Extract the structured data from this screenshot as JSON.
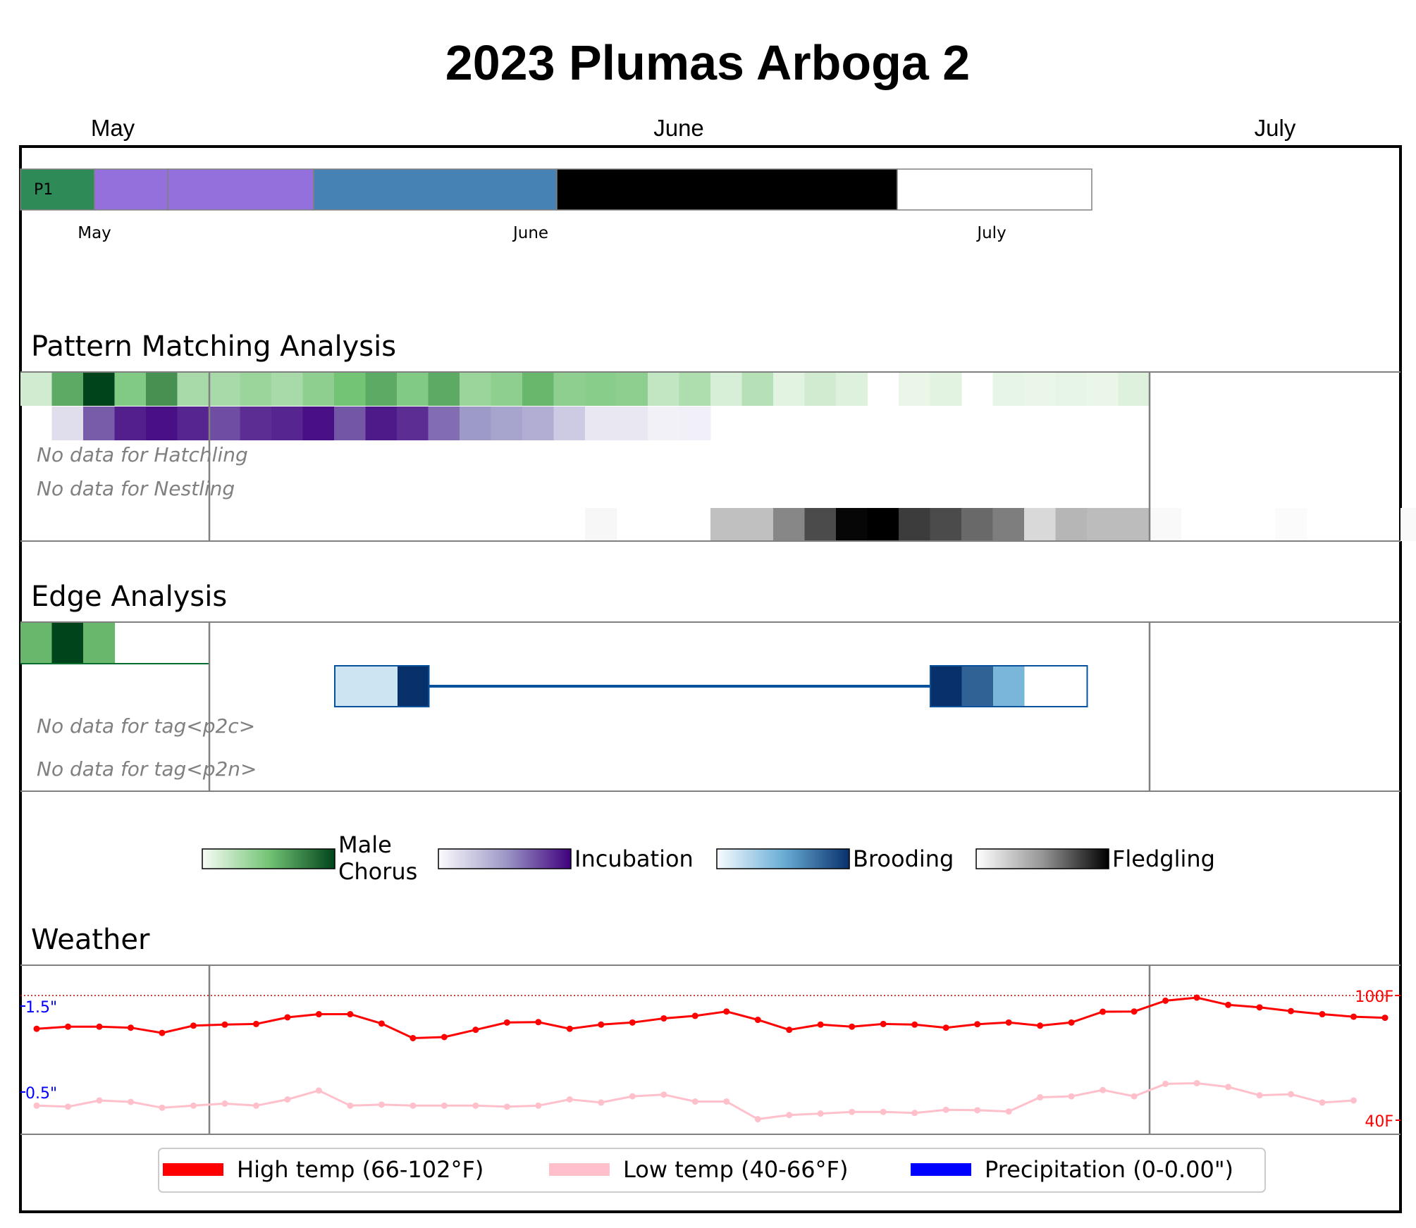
{
  "title": "2023 Plumas Arboga 2",
  "chart_data": {
    "type": "heatmap",
    "title": "2023 Plumas Arboga 2",
    "months_top": [
      "May",
      "June",
      "July"
    ],
    "timeline": {
      "label": "P1",
      "month_labels": [
        "May",
        "June",
        "July"
      ],
      "segments": [
        {
          "phase": "Male Chorus",
          "color": "#2e8b57"
        },
        {
          "phase": "Incubation",
          "color": "#9370db"
        },
        {
          "phase": "Incubation",
          "color": "#9370db"
        },
        {
          "phase": "Brooding",
          "color": "#4682b4"
        },
        {
          "phase": "Fledgling",
          "color": "#000000"
        },
        {
          "phase": "Unknown",
          "color": "#ffffff"
        }
      ]
    },
    "pattern_matching": {
      "section_title": "Pattern Matching Analysis",
      "male_chorus": [
        0.15,
        0.6,
        1.0,
        0.45,
        0.7,
        0.3,
        0.3,
        0.35,
        0.3,
        0.4,
        0.5,
        0.6,
        0.45,
        0.6,
        0.35,
        0.4,
        0.55,
        0.4,
        0.42,
        0.4,
        0.2,
        0.28,
        0.12,
        0.25,
        0.08,
        0.15,
        0.1,
        0.0,
        0.05,
        0.08,
        0.0,
        0.06,
        0.05,
        0.06,
        0.05,
        0.1
      ],
      "incubation": [
        0.0,
        0.15,
        0.7,
        0.9,
        0.95,
        0.88,
        0.75,
        0.85,
        0.88,
        0.95,
        0.72,
        0.92,
        0.85,
        0.65,
        0.5,
        0.45,
        0.4,
        0.25,
        0.1,
        0.1,
        0.05,
        0.06
      ],
      "no_data_notes": [
        "No data for Hatchling",
        "No data for Nestling"
      ],
      "fledgling": [
        0.0,
        0.0,
        0.0,
        0.0,
        0.0,
        0.0,
        0.0,
        0.0,
        0.0,
        0.0,
        0.0,
        0.0,
        0.0,
        0.0,
        0.0,
        0.0,
        0.0,
        0.0,
        0.04,
        0.0,
        0.0,
        0.0,
        0.3,
        0.3,
        0.55,
        0.75,
        0.98,
        1.0,
        0.8,
        0.75,
        0.65,
        0.58,
        0.18,
        0.35,
        0.32,
        0.32,
        0.03,
        0.0,
        0.0,
        0.0,
        0.02,
        0.0,
        0.0,
        0.0,
        0.03
      ]
    },
    "edge_analysis": {
      "section_title": "Edge Analysis",
      "male_chorus": [
        0.55,
        1.0,
        0.55,
        0.0,
        0.0,
        0.0
      ],
      "no_data_notes": [
        "No data for tag<p2c>",
        "No data for tag<p2n>"
      ],
      "incubation_box": [
        0.15,
        0.15,
        1.0
      ],
      "brooding_box": [
        1.0,
        0.8,
        0.45,
        0.0,
        0.0
      ]
    },
    "legend": [
      {
        "label": "Male\nChorus",
        "line1": "Male",
        "line2": "Chorus",
        "colormap": [
          "#f7fcf5",
          "#74c476",
          "#00441b"
        ]
      },
      {
        "label": "Incubation",
        "colormap": [
          "#fcfbfd",
          "#9e9ac8",
          "#3f007d"
        ]
      },
      {
        "label": "Brooding",
        "colormap": [
          "#f7fbff",
          "#6baed6",
          "#08306b"
        ]
      },
      {
        "label": "Fledgling",
        "colormap": [
          "#ffffff",
          "#969696",
          "#000000"
        ]
      }
    ],
    "weather": {
      "section_title": "Weather",
      "high_temp": [
        84,
        85,
        85,
        84.5,
        82,
        85.5,
        86,
        86.3,
        89.5,
        91,
        91,
        86.5,
        79.5,
        80,
        83.5,
        87,
        87.2,
        84,
        86,
        87,
        89,
        90.2,
        92.3,
        88.3,
        83.5,
        86,
        85,
        86.3,
        86,
        84.5,
        86.2,
        87,
        85.5,
        87,
        92.2,
        92.3,
        97.5,
        99,
        95.5,
        94.3,
        92.5,
        91,
        89.8,
        89.3
      ],
      "low_temp": [
        47,
        46.5,
        49.5,
        48.8,
        46,
        47,
        48,
        47,
        50,
        54.3,
        47,
        47.5,
        47,
        47,
        47,
        46.5,
        47,
        50,
        48.5,
        51.5,
        52.3,
        49,
        49,
        40.5,
        42.5,
        43.2,
        44,
        44,
        43.5,
        45,
        44.8,
        44.2,
        51,
        51.5,
        54.5,
        51.5,
        57.5,
        57.8,
        56,
        52,
        52.5,
        48.5,
        49.5
      ],
      "y_min": 40,
      "y_max": 100,
      "reference_line": 100,
      "temp_labels": [
        "100F",
        "40F"
      ],
      "precip_labels": [
        "1.5\"",
        "0.5\""
      ],
      "colors": {
        "high": "#ff0000",
        "low": "#ffc0cb",
        "precip": "#0000ff"
      }
    },
    "weather_legend": [
      {
        "label": "High temp (66-102°F)",
        "color": "#ff0000"
      },
      {
        "label": "Low temp (40-66°F)",
        "color": "#ffc0cb"
      },
      {
        "label": "Precipitation (0-0.00\")",
        "color": "#0000ff"
      }
    ]
  }
}
